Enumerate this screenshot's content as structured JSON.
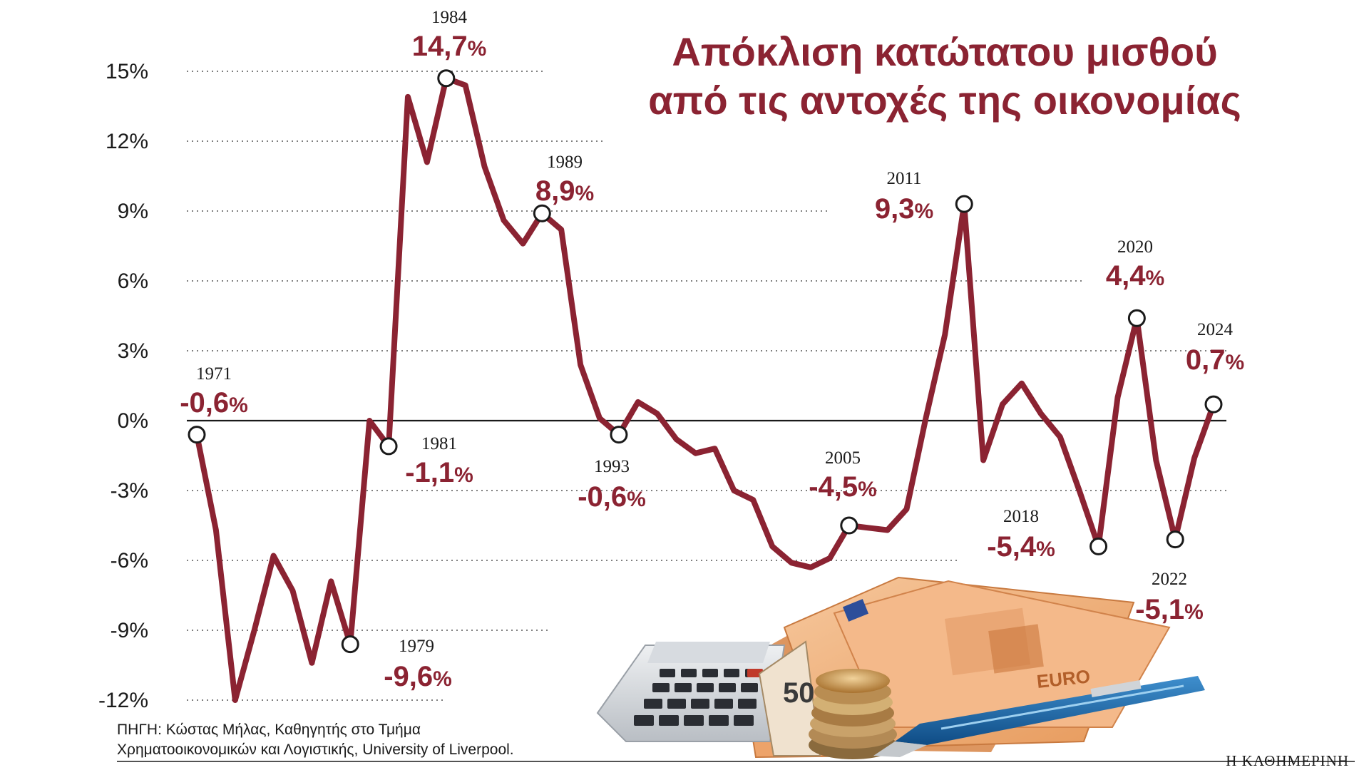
{
  "chart_data": {
    "type": "line",
    "title_lines": [
      "Απόκλιση κατώτατου μισθού",
      "από τις αντοχές της οικονομίας"
    ],
    "y_ticks": [
      "15%",
      "12%",
      "9%",
      "6%",
      "3%",
      "0%",
      "-3%",
      "-6%",
      "-9%",
      "-12%"
    ],
    "ylim": [
      -12,
      15
    ],
    "grid": "dotted",
    "series": [
      {
        "color": "#8b2332",
        "x": [
          1971,
          1972,
          1973,
          1974,
          1975,
          1976,
          1977,
          1978,
          1979,
          1980,
          1981,
          1982,
          1983,
          1984,
          1985,
          1986,
          1987,
          1988,
          1989,
          1990,
          1991,
          1992,
          1993,
          1994,
          1995,
          1996,
          1997,
          1998,
          1999,
          2000,
          2001,
          2002,
          2003,
          2004,
          2005,
          2006,
          2007,
          2008,
          2009,
          2010,
          2011,
          2012,
          2013,
          2014,
          2015,
          2016,
          2017,
          2018,
          2019,
          2020,
          2021,
          2022,
          2023,
          2024
        ],
        "values": [
          -0.6,
          -4.7,
          -12.0,
          -9.0,
          -5.8,
          -7.3,
          -10.4,
          -6.9,
          -9.6,
          0.0,
          -1.1,
          13.9,
          11.1,
          14.7,
          14.4,
          10.9,
          8.6,
          7.6,
          8.9,
          8.2,
          2.4,
          0.1,
          -0.6,
          0.8,
          0.3,
          -0.8,
          -1.4,
          -1.2,
          -3.0,
          -3.4,
          -5.4,
          -6.1,
          -6.3,
          -5.9,
          -4.5,
          -4.6,
          -4.7,
          -3.8,
          0.1,
          3.7,
          9.3,
          -1.7,
          0.7,
          1.6,
          0.3,
          -0.7,
          -3.0,
          -5.4,
          1.0,
          4.4,
          -1.7,
          -5.1,
          -1.6,
          0.7
        ]
      }
    ],
    "annotations": [
      {
        "year": "1971",
        "value": "-0,6",
        "pct": "%",
        "x": 1971,
        "y": -0.6
      },
      {
        "year": "1979",
        "value": "-9,6",
        "pct": "%",
        "x": 1979,
        "y": -9.6
      },
      {
        "year": "1981",
        "value": "-1,1",
        "pct": "%",
        "x": 1981,
        "y": -1.1
      },
      {
        "year": "1984",
        "value": "14,7",
        "pct": "%",
        "x": 1984,
        "y": 14.7
      },
      {
        "year": "1989",
        "value": "8,9",
        "pct": "%",
        "x": 1989,
        "y": 8.9
      },
      {
        "year": "1993",
        "value": "-0,6",
        "pct": "%",
        "x": 1993,
        "y": -0.6
      },
      {
        "year": "2005",
        "value": "-4,5",
        "pct": "%",
        "x": 2005,
        "y": -4.5
      },
      {
        "year": "2011",
        "value": "9,3",
        "pct": "%",
        "x": 2011,
        "y": 9.3
      },
      {
        "year": "2018",
        "value": "-5,4",
        "pct": "%",
        "x": 2018,
        "y": -5.4
      },
      {
        "year": "2020",
        "value": "4,4",
        "pct": "%",
        "x": 2020,
        "y": 4.4
      },
      {
        "year": "2022",
        "value": "-5,1",
        "pct": "%",
        "x": 2022,
        "y": -5.1
      },
      {
        "year": "2024",
        "value": "0,7",
        "pct": "%",
        "x": 2024,
        "y": 0.7
      }
    ]
  },
  "source_lines": [
    "ΠΗΓΗ: Κώστας Μήλας, Καθηγητής στο Τμήμα",
    "Χρηματοοικονομικών και Λογιστικής, University of Liverpool."
  ],
  "brand": "Η ΚΑΘΗΜΕΡΙΝΗ",
  "illustration": {
    "banknote_text": "EURO",
    "banknote_value": "50",
    "calculator_icon": "calculator-icon",
    "pen_icon": "pen-icon",
    "coins_icon": "coins-icon"
  }
}
